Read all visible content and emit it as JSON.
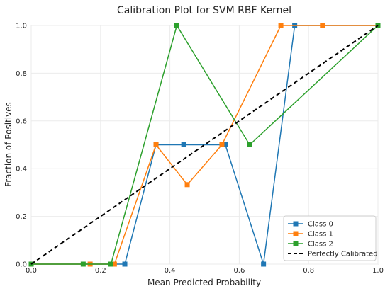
{
  "chart_data": {
    "type": "line",
    "title": "Calibration Plot for SVM RBF Kernel",
    "xlabel": "Mean Predicted Probability",
    "ylabel": "Fraction of Positives",
    "xlim": [
      0.0,
      1.0
    ],
    "ylim": [
      0.0,
      1.0
    ],
    "xticks": [
      "0.0",
      "0.2",
      "0.4",
      "0.6",
      "0.8",
      "1.0"
    ],
    "yticks": [
      "0.0",
      "0.2",
      "0.4",
      "0.6",
      "0.8",
      "1.0"
    ],
    "grid": true,
    "legend_position": "bottom-right",
    "series": [
      {
        "name": "Class 0",
        "color": "#1f77b4",
        "marker": "square",
        "x": [
          0.0,
          0.27,
          0.36,
          0.44,
          0.56,
          0.67,
          0.76,
          1.0
        ],
        "y": [
          0.0,
          0.0,
          0.5,
          0.5,
          0.5,
          0.0,
          1.0,
          1.0
        ]
      },
      {
        "name": "Class 1",
        "color": "#ff7f0e",
        "marker": "square",
        "x": [
          0.0,
          0.17,
          0.24,
          0.36,
          0.45,
          0.55,
          0.72,
          0.84,
          1.0
        ],
        "y": [
          0.0,
          0.0,
          0.0,
          0.5,
          0.333,
          0.5,
          1.0,
          1.0,
          1.0
        ]
      },
      {
        "name": "Class 2",
        "color": "#2ca02c",
        "marker": "square",
        "x": [
          0.0,
          0.15,
          0.23,
          0.42,
          0.63,
          1.0
        ],
        "y": [
          0.0,
          0.0,
          0.0,
          1.0,
          0.5,
          1.0
        ]
      },
      {
        "name": "Perfectly Calibrated",
        "color": "#000000",
        "marker": "none",
        "dashed": true,
        "x": [
          0.0,
          1.0
        ],
        "y": [
          0.0,
          1.0
        ]
      }
    ]
  }
}
